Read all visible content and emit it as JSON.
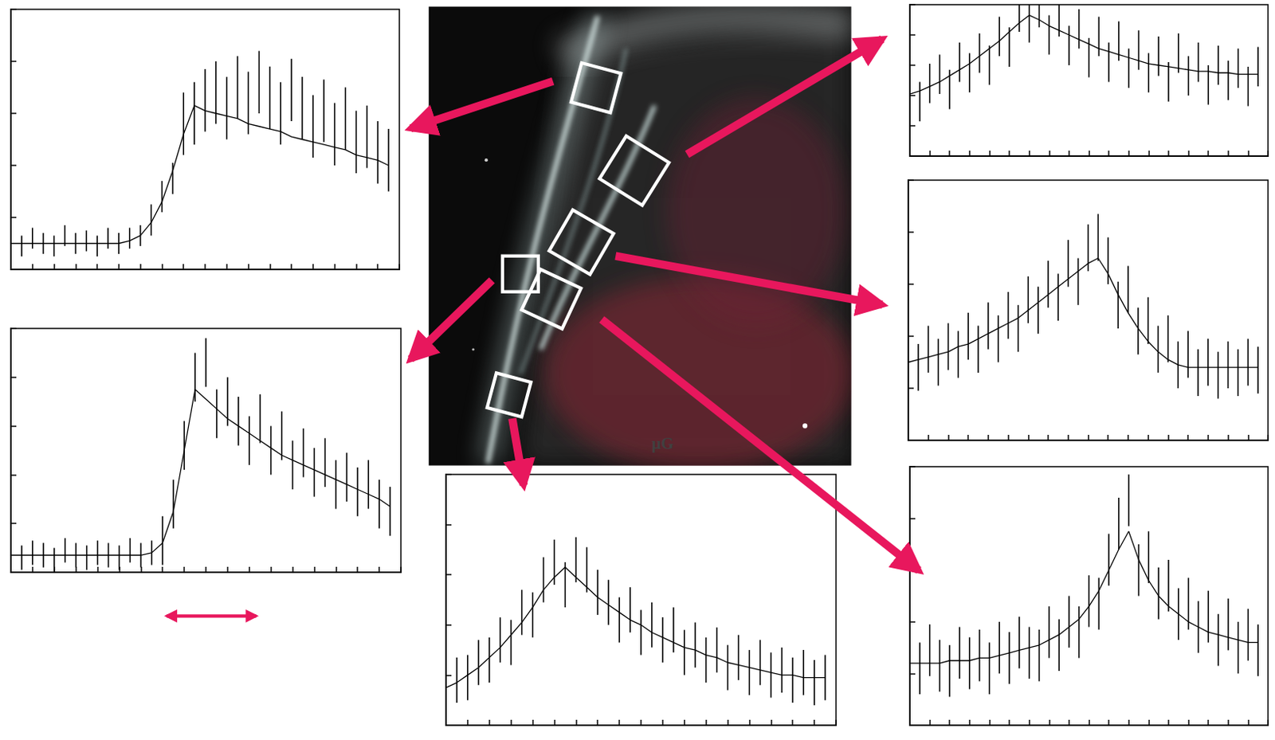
{
  "image": {
    "annotation": "μG"
  },
  "chart_data": [
    {
      "type": "line",
      "tick_labels": false,
      "x": [
        0,
        1,
        2,
        3,
        4,
        5,
        6,
        7,
        8,
        9,
        10,
        11,
        12,
        13,
        14,
        15,
        16,
        17,
        18,
        19,
        20,
        21,
        22,
        23,
        24,
        25,
        26,
        27,
        28,
        29,
        30,
        31,
        32,
        33,
        34,
        35
      ],
      "xlim": [
        0,
        36
      ],
      "xticks": [
        0,
        2,
        4,
        6,
        8,
        10,
        12,
        14,
        16,
        18,
        20,
        22,
        24,
        26,
        28,
        30,
        32,
        34,
        36
      ],
      "ylim": [
        0,
        10
      ],
      "yticks": [
        0,
        2,
        4,
        6,
        8,
        10
      ],
      "series": [
        {
          "type": "scatter",
          "marker": "errorbar",
          "color": "#000000",
          "values": [
            1.1,
            0.9,
            1.2,
            1.0,
            0.9,
            1.3,
            1.0,
            1.1,
            0.9,
            1.2,
            1.0,
            1.2,
            1.3,
            1.9,
            2.8,
            3.5,
            5.6,
            6.0,
            6.5,
            6.8,
            6.2,
            7.0,
            6.4,
            7.2,
            6.6,
            6.0,
            6.9,
            6.2,
            5.5,
            6.1,
            5.2,
            5.8,
            4.9,
            5.1,
            4.5,
            4.2
          ],
          "errors": [
            0.4,
            0.4,
            0.4,
            0.4,
            0.4,
            0.4,
            0.4,
            0.4,
            0.4,
            0.4,
            0.4,
            0.4,
            0.4,
            0.6,
            0.6,
            0.6,
            1.2,
            1.2,
            1.2,
            1.2,
            1.2,
            1.2,
            1.2,
            1.2,
            1.2,
            1.2,
            1.2,
            1.2,
            1.2,
            1.2,
            1.2,
            1.2,
            1.2,
            1.2,
            1.2,
            1.2
          ]
        },
        {
          "type": "line",
          "line_style": "solid",
          "color": "#000000",
          "values": [
            1.0,
            1.0,
            1.0,
            1.0,
            1.0,
            1.0,
            1.0,
            1.0,
            1.0,
            1.0,
            1.0,
            1.1,
            1.3,
            1.8,
            2.6,
            3.8,
            5.2,
            6.3,
            6.1,
            6.0,
            5.9,
            5.8,
            5.6,
            5.5,
            5.4,
            5.3,
            5.1,
            5.0,
            4.9,
            4.8,
            4.7,
            4.6,
            4.4,
            4.3,
            4.2,
            4.0
          ]
        }
      ]
    },
    {
      "type": "line",
      "tick_labels": false,
      "x": [
        0,
        1,
        2,
        3,
        4,
        5,
        6,
        7,
        8,
        9,
        10,
        11,
        12,
        13,
        14,
        15,
        16,
        17,
        18,
        19,
        20,
        21,
        22,
        23,
        24,
        25,
        26,
        27,
        28,
        29,
        30,
        31,
        32,
        33,
        34,
        35
      ],
      "xlim": [
        0,
        36
      ],
      "xticks": [
        0,
        2,
        4,
        6,
        8,
        10,
        12,
        14,
        16,
        18,
        20,
        22,
        24,
        26,
        28,
        30,
        32,
        34,
        36
      ],
      "ylim": [
        0,
        10
      ],
      "yticks": [
        0,
        2,
        4,
        6,
        8,
        10
      ],
      "series": [
        {
          "type": "scatter",
          "marker": "errorbar",
          "color": "#000000",
          "values": [
            0.9,
            0.6,
            0.8,
            0.7,
            0.5,
            0.9,
            0.7,
            0.6,
            0.8,
            0.7,
            0.6,
            0.9,
            0.7,
            0.8,
            1.3,
            2.8,
            5.2,
            8.0,
            8.6,
            6.5,
            7.0,
            6.2,
            5.4,
            6.3,
            5.0,
            5.6,
            4.4,
            4.9,
            4.1,
            4.5,
            3.6,
            3.9,
            3.3,
            3.6,
            2.8,
            2.5
          ],
          "errors": [
            0.5,
            0.5,
            0.5,
            0.5,
            0.5,
            0.5,
            0.5,
            0.5,
            0.5,
            0.5,
            0.5,
            0.5,
            0.5,
            0.5,
            1.0,
            1.0,
            1.0,
            1.0,
            1.0,
            1.0,
            1.0,
            1.0,
            1.0,
            1.0,
            1.0,
            1.0,
            1.0,
            1.0,
            1.0,
            1.0,
            1.0,
            1.0,
            1.0,
            1.0,
            1.0,
            1.0
          ]
        },
        {
          "type": "line",
          "line_style": "solid",
          "color": "#000000",
          "values": [
            0.7,
            0.7,
            0.7,
            0.7,
            0.7,
            0.7,
            0.7,
            0.7,
            0.7,
            0.7,
            0.7,
            0.7,
            0.7,
            0.8,
            1.2,
            2.5,
            5.0,
            7.5,
            7.1,
            6.7,
            6.3,
            6.0,
            5.7,
            5.4,
            5.1,
            4.8,
            4.6,
            4.4,
            4.2,
            4.0,
            3.8,
            3.6,
            3.4,
            3.2,
            3.0,
            2.7
          ]
        }
      ]
    },
    {
      "type": "line",
      "tick_labels": false,
      "x": [
        0,
        1,
        2,
        3,
        4,
        5,
        6,
        7,
        8,
        9,
        10,
        11,
        12,
        13,
        14,
        15,
        16,
        17,
        18,
        19,
        20,
        21,
        22,
        23,
        24,
        25,
        26,
        27,
        28,
        29,
        30,
        31,
        32,
        33,
        34,
        35
      ],
      "xlim": [
        0,
        36
      ],
      "xticks": [
        0,
        2,
        4,
        6,
        8,
        10,
        12,
        14,
        16,
        18,
        20,
        22,
        24,
        26,
        28,
        30,
        32,
        34,
        36
      ],
      "ylim": [
        0,
        10
      ],
      "yticks": [
        0,
        2,
        4,
        6,
        8,
        10
      ],
      "series": [
        {
          "type": "scatter",
          "marker": "errorbar",
          "color": "#000000",
          "values": [
            1.3,
            1.8,
            1.9,
            2.5,
            2.6,
            3.4,
            3.3,
            4.5,
            4.4,
            5.8,
            6.5,
            5.6,
            6.6,
            6.2,
            5.3,
            4.9,
            4.2,
            4.6,
            3.7,
            4.0,
            3.4,
            3.8,
            2.9,
            3.2,
            2.6,
            3.0,
            2.3,
            2.7,
            2.1,
            2.5,
            2.0,
            2.2,
            1.8,
            2.1,
            1.7,
            1.9
          ],
          "errors": [
            0.9,
            0.9,
            0.9,
            0.9,
            0.9,
            0.9,
            0.9,
            0.9,
            0.9,
            0.9,
            0.9,
            0.9,
            0.9,
            0.9,
            0.9,
            0.9,
            0.9,
            0.9,
            0.9,
            0.9,
            0.9,
            0.9,
            0.9,
            0.9,
            0.9,
            0.9,
            0.9,
            0.9,
            0.9,
            0.9,
            0.9,
            0.9,
            0.9,
            0.9,
            0.9,
            0.9
          ]
        },
        {
          "type": "line",
          "line_style": "solid",
          "color": "#000000",
          "values": [
            1.5,
            1.7,
            2.0,
            2.3,
            2.7,
            3.1,
            3.6,
            4.1,
            4.7,
            5.4,
            5.9,
            6.3,
            5.9,
            5.5,
            5.1,
            4.8,
            4.5,
            4.2,
            4.0,
            3.7,
            3.5,
            3.3,
            3.1,
            3.0,
            2.8,
            2.7,
            2.5,
            2.4,
            2.3,
            2.2,
            2.1,
            2.0,
            2.0,
            1.9,
            1.9,
            1.9
          ]
        }
      ]
    },
    {
      "type": "line",
      "tick_labels": false,
      "x": [
        0,
        1,
        2,
        3,
        4,
        5,
        6,
        7,
        8,
        9,
        10,
        11,
        12,
        13,
        14,
        15,
        16,
        17,
        18,
        19,
        20,
        21,
        22,
        23,
        24,
        25,
        26,
        27,
        28,
        29,
        30,
        31,
        32,
        33,
        34,
        35
      ],
      "xlim": [
        0,
        36
      ],
      "xticks": [
        0,
        2,
        4,
        6,
        8,
        10,
        12,
        14,
        16,
        18,
        20,
        22,
        24,
        26,
        28,
        30,
        32,
        34,
        36
      ],
      "ylim": [
        0,
        10
      ],
      "yticks": [
        0,
        2,
        4,
        6,
        8,
        10
      ],
      "series": [
        {
          "type": "scatter",
          "marker": "errorbar",
          "color": "#000000",
          "values": [
            4.5,
            3.6,
            4.8,
            5.4,
            4.4,
            6.2,
            5.5,
            6.8,
            6.0,
            7.9,
            7.2,
            9.5,
            8.8,
            9.8,
            8.0,
            9.2,
            7.3,
            8.4,
            6.5,
            7.9,
            6.2,
            7.6,
            5.8,
            7.0,
            5.5,
            6.6,
            4.9,
            6.8,
            5.3,
            6.2,
            4.7,
            6.0,
            5.0,
            5.8,
            4.6,
            5.9
          ],
          "errors": [
            1.3,
            1.3,
            1.3,
            1.3,
            1.3,
            1.3,
            1.3,
            1.3,
            1.3,
            1.3,
            1.3,
            1.3,
            1.3,
            1.3,
            1.3,
            1.3,
            1.3,
            1.3,
            1.3,
            1.3,
            1.3,
            1.3,
            1.3,
            1.3,
            1.3,
            1.3,
            1.3,
            1.3,
            1.3,
            1.3,
            1.3,
            1.3,
            1.3,
            1.3,
            1.3,
            1.3
          ]
        },
        {
          "type": "line",
          "line_style": "solid",
          "color": "#000000",
          "values": [
            4.1,
            4.3,
            4.6,
            4.9,
            5.3,
            5.7,
            6.1,
            6.6,
            7.1,
            7.6,
            8.2,
            8.8,
            9.3,
            9.0,
            8.6,
            8.3,
            8.0,
            7.7,
            7.4,
            7.1,
            6.9,
            6.7,
            6.5,
            6.3,
            6.1,
            6.0,
            5.9,
            5.8,
            5.7,
            5.6,
            5.6,
            5.5,
            5.5,
            5.4,
            5.4,
            5.4
          ]
        }
      ]
    },
    {
      "type": "line",
      "tick_labels": false,
      "x": [
        0,
        1,
        2,
        3,
        4,
        5,
        6,
        7,
        8,
        9,
        10,
        11,
        12,
        13,
        14,
        15,
        16,
        17,
        18,
        19,
        20,
        21,
        22,
        23,
        24,
        25,
        26,
        27,
        28,
        29,
        30,
        31,
        32,
        33,
        34,
        35
      ],
      "xlim": [
        0,
        36
      ],
      "xticks": [
        0,
        2,
        4,
        6,
        8,
        10,
        12,
        14,
        16,
        18,
        20,
        22,
        24,
        26,
        28,
        30,
        32,
        34,
        36
      ],
      "ylim": [
        0,
        10
      ],
      "yticks": [
        0,
        2,
        4,
        6,
        8,
        10
      ],
      "series": [
        {
          "type": "scatter",
          "marker": "errorbar",
          "color": "#000000",
          "values": [
            3.2,
            2.8,
            3.5,
            3.0,
            3.6,
            3.3,
            4.0,
            3.5,
            4.4,
            3.9,
            4.8,
            4.3,
            5.4,
            5.0,
            6.0,
            5.5,
            6.8,
            6.1,
            7.4,
            7.8,
            6.9,
            5.2,
            5.8,
            4.2,
            4.6,
            3.5,
            3.9,
            2.9,
            3.3,
            2.6,
            3.0,
            2.5,
            2.9,
            2.6,
            3.0,
            2.7
          ],
          "errors": [
            0.9,
            0.9,
            0.9,
            0.9,
            0.9,
            0.9,
            0.9,
            0.9,
            0.9,
            0.9,
            0.9,
            0.9,
            0.9,
            0.9,
            0.9,
            0.9,
            0.9,
            0.9,
            0.9,
            0.9,
            0.9,
            0.9,
            0.9,
            0.9,
            0.9,
            0.9,
            0.9,
            0.9,
            0.9,
            0.9,
            0.9,
            0.9,
            0.9,
            0.9,
            0.9,
            0.9
          ]
        },
        {
          "type": "line",
          "line_style": "solid",
          "color": "#000000",
          "values": [
            3.0,
            3.1,
            3.2,
            3.3,
            3.4,
            3.6,
            3.7,
            3.9,
            4.1,
            4.3,
            4.5,
            4.7,
            5.0,
            5.3,
            5.6,
            5.9,
            6.2,
            6.5,
            6.8,
            7.0,
            6.4,
            5.6,
            4.9,
            4.3,
            3.8,
            3.4,
            3.1,
            2.9,
            2.8,
            2.8,
            2.8,
            2.8,
            2.8,
            2.8,
            2.8,
            2.8
          ]
        }
      ]
    },
    {
      "type": "line",
      "tick_labels": false,
      "x": [
        0,
        1,
        2,
        3,
        4,
        5,
        6,
        7,
        8,
        9,
        10,
        11,
        12,
        13,
        14,
        15,
        16,
        17,
        18,
        19,
        20,
        21,
        22,
        23,
        24,
        25,
        26,
        27,
        28,
        29,
        30,
        31,
        32,
        33,
        34,
        35
      ],
      "xlim": [
        0,
        36
      ],
      "xticks": [
        0,
        2,
        4,
        6,
        8,
        10,
        12,
        14,
        16,
        18,
        20,
        22,
        24,
        26,
        28,
        30,
        32,
        34,
        36
      ],
      "ylim": [
        0,
        10
      ],
      "yticks": [
        0,
        2,
        4,
        6,
        8,
        10
      ],
      "series": [
        {
          "type": "scatter",
          "marker": "errorbar",
          "color": "#000000",
          "values": [
            2.6,
            2.2,
            2.9,
            2.3,
            2.1,
            2.8,
            2.4,
            2.7,
            2.2,
            3.0,
            2.6,
            3.2,
            2.8,
            2.7,
            3.6,
            3.1,
            4.0,
            3.6,
            4.8,
            4.7,
            6.4,
            7.8,
            8.7,
            6.0,
            6.5,
            5.1,
            5.4,
            4.3,
            4.7,
            3.8,
            4.2,
            3.3,
            3.9,
            3.0,
            3.5,
            2.9
          ],
          "errors": [
            1.0,
            1.0,
            1.0,
            1.0,
            1.0,
            1.0,
            1.0,
            1.0,
            1.0,
            1.0,
            1.0,
            1.0,
            1.0,
            1.0,
            1.0,
            1.0,
            1.0,
            1.0,
            1.0,
            1.0,
            1.0,
            1.0,
            1.0,
            1.0,
            1.0,
            1.0,
            1.0,
            1.0,
            1.0,
            1.0,
            1.0,
            1.0,
            1.0,
            1.0,
            1.0,
            1.0
          ]
        },
        {
          "type": "line",
          "line_style": "solid",
          "color": "#000000",
          "values": [
            2.4,
            2.4,
            2.4,
            2.4,
            2.5,
            2.5,
            2.5,
            2.6,
            2.6,
            2.7,
            2.8,
            2.9,
            3.0,
            3.1,
            3.3,
            3.5,
            3.8,
            4.1,
            4.6,
            5.2,
            6.0,
            6.8,
            7.5,
            6.4,
            5.6,
            5.0,
            4.6,
            4.3,
            4.0,
            3.8,
            3.6,
            3.5,
            3.4,
            3.3,
            3.2,
            3.2
          ]
        }
      ]
    }
  ]
}
